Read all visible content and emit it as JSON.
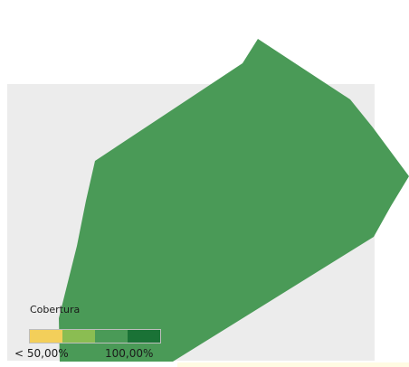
{
  "map": {
    "region_fill_color": "#4a9a57",
    "background_color": "#ececec"
  },
  "legend": {
    "title": "Cobertura",
    "min_label": "< 50,00%",
    "max_label": "100,00%",
    "colors": [
      "#f3cf5a",
      "#8bbd52",
      "#4a9a57",
      "#1a7236"
    ]
  }
}
